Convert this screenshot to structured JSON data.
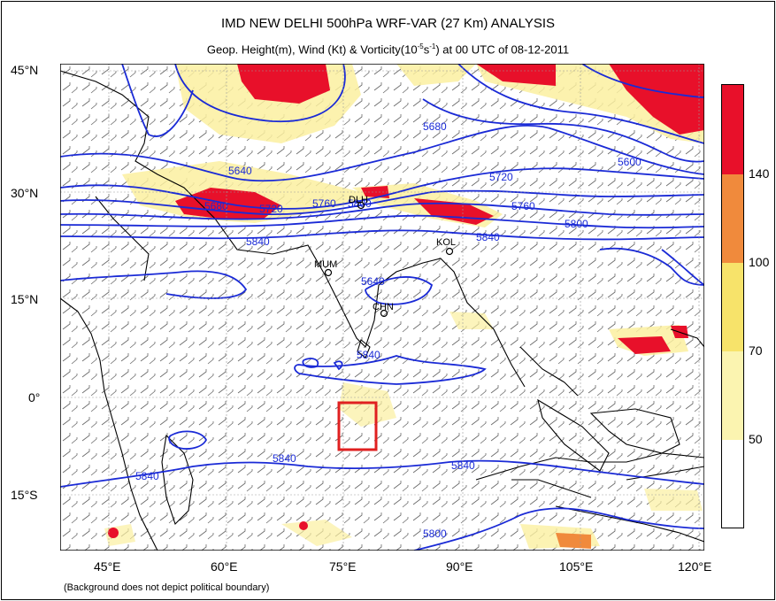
{
  "header": {
    "title": "IMD NEW DELHI 500hPa WRF-VAR (27 Km) ANALYSIS",
    "subtitle_pre": "Geop. Height(m), Wind (Kt) & Vorticity(10",
    "subtitle_sup": "-5",
    "subtitle_mid": "s",
    "subtitle_sup2": "-1",
    "subtitle_post": ") at 00 UTC of 08-12-2011"
  },
  "map": {
    "lat_labels": [
      "45°N",
      "30°N",
      "15°N",
      "0°",
      "15°S"
    ],
    "lon_labels": [
      "45°E",
      "60°E",
      "75°E",
      "90°E",
      "105°E",
      "120°E"
    ],
    "contour_labels": [
      "5640",
      "5680",
      "5720",
      "5760",
      "5800",
      "5840",
      "5600",
      "5680",
      "5720",
      "5760",
      "5800",
      "5840",
      "5840",
      "5840",
      "5840",
      "5840",
      "5800",
      "5640"
    ],
    "stations": [
      "MUM",
      "CHN",
      "DLH",
      "KOL"
    ],
    "contour_color": "#1a2ad6",
    "highlight_box_color": "#e02020"
  },
  "colorbar": {
    "levels": [
      "140",
      "100",
      "70",
      "50"
    ],
    "colors": [
      "#e8102a",
      "#f08a3c",
      "#f7e36a",
      "#fbf4b0",
      "#ffffff"
    ]
  },
  "footnote": "(Background does not depict political boundary)"
}
